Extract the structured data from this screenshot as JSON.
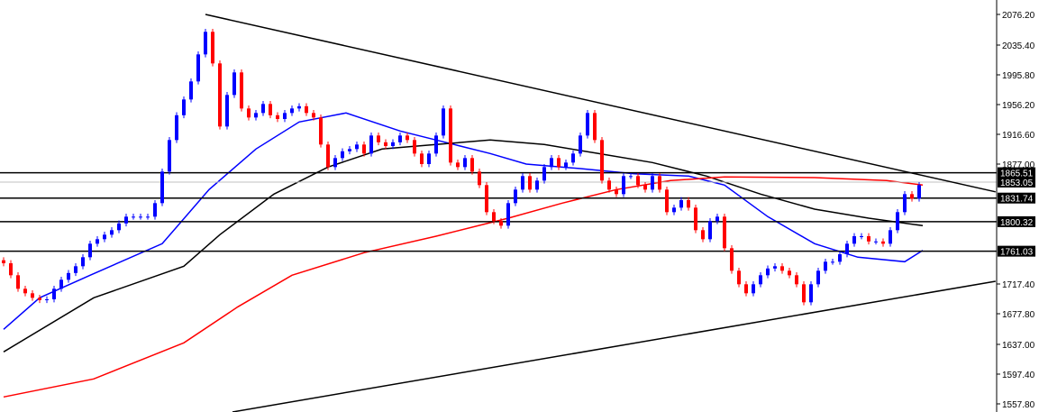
{
  "chart_data": {
    "type": "candlestick",
    "title": "",
    "xlabel": "",
    "ylabel": "",
    "ylim": [
      1547,
      2085
    ],
    "y_ticks": [
      "2076.20",
      "2035.40",
      "1995.80",
      "1956.20",
      "1916.60",
      "1877.00",
      "1717.40",
      "1677.80",
      "1637.00",
      "1597.40",
      "1557.80"
    ],
    "y_tick_values": [
      2076.2,
      2035.4,
      1995.8,
      1956.2,
      1916.6,
      1877.0,
      1717.4,
      1677.8,
      1637.0,
      1597.4,
      1557.8
    ],
    "colors": {
      "up": "#0000ff",
      "down": "#ff0000",
      "ma_fast": "#0000ff",
      "ma_mid": "#000000",
      "ma_slow": "#ff0000",
      "level": "#000000",
      "current": "#c0c0c0",
      "background": "#ffffff"
    },
    "closes": [
      1745,
      1729,
      1711,
      1705,
      1699,
      1696,
      1697,
      1711,
      1723,
      1732,
      1741,
      1753,
      1771,
      1777,
      1783,
      1789,
      1798,
      1807,
      1807,
      1807,
      1807,
      1825,
      1867,
      1909,
      1942,
      1963,
      1987,
      2023,
      2053,
      2011,
      1927,
      1969,
      1999,
      1951,
      1939,
      1945,
      1957,
      1942,
      1937,
      1945,
      1951,
      1954,
      1945,
      1939,
      1903,
      1873,
      1885,
      1894,
      1897,
      1903,
      1891,
      1915,
      1906,
      1901,
      1906,
      1915,
      1909,
      1891,
      1877,
      1891,
      1915,
      1951,
      1879,
      1873,
      1885,
      1867,
      1849,
      1813,
      1801,
      1795,
      1825,
      1843,
      1861,
      1843,
      1855,
      1873,
      1885,
      1873,
      1879,
      1891,
      1915,
      1945,
      1909,
      1855,
      1843,
      1837,
      1861,
      1861,
      1849,
      1843,
      1861,
      1843,
      1813,
      1819,
      1829,
      1819,
      1789,
      1777,
      1801,
      1807,
      1765,
      1735,
      1717,
      1705,
      1717,
      1729,
      1738,
      1741,
      1735,
      1729,
      1717,
      1693,
      1717,
      1735,
      1747,
      1747,
      1757,
      1771,
      1781,
      1781,
      1774,
      1774,
      1771,
      1789,
      1813,
      1837,
      1831,
      1849
    ],
    "moving_averages": [
      {
        "color": "#0000ff",
        "points": [
          [
            0,
            1657
          ],
          [
            5,
            1699
          ],
          [
            12,
            1729
          ],
          [
            22,
            1771
          ],
          [
            28.5,
            1843
          ],
          [
            35,
            1897
          ],
          [
            41,
            1933
          ],
          [
            47.5,
            1945
          ],
          [
            55,
            1921
          ],
          [
            62.5,
            1903
          ],
          [
            67.5,
            1891
          ],
          [
            72.5,
            1877
          ],
          [
            80,
            1871
          ],
          [
            87.5,
            1864
          ],
          [
            95,
            1861
          ],
          [
            100,
            1849
          ],
          [
            106,
            1807
          ],
          [
            112.5,
            1771
          ],
          [
            118.5,
            1753
          ],
          [
            125,
            1747
          ],
          [
            127.5,
            1762
          ]
        ]
      },
      {
        "color": "#000000",
        "points": [
          [
            0,
            1627
          ],
          [
            12.5,
            1699
          ],
          [
            25,
            1741
          ],
          [
            30,
            1783
          ],
          [
            37.5,
            1837
          ],
          [
            45,
            1873
          ],
          [
            52.5,
            1897
          ],
          [
            60,
            1903
          ],
          [
            67.5,
            1909
          ],
          [
            75,
            1903
          ],
          [
            82.5,
            1891
          ],
          [
            90,
            1879
          ],
          [
            97.5,
            1861
          ],
          [
            105,
            1837
          ],
          [
            112.5,
            1817
          ],
          [
            120,
            1805
          ],
          [
            127.5,
            1795
          ]
        ]
      },
      {
        "color": "#ff0000",
        "points": [
          [
            0,
            1567
          ],
          [
            12.5,
            1591
          ],
          [
            25,
            1639
          ],
          [
            32.5,
            1687
          ],
          [
            40,
            1729
          ],
          [
            50,
            1759
          ],
          [
            60,
            1781
          ],
          [
            70,
            1805
          ],
          [
            77.5,
            1825
          ],
          [
            85,
            1843
          ],
          [
            92.5,
            1855
          ],
          [
            100,
            1860
          ],
          [
            112.5,
            1859
          ],
          [
            122.5,
            1855
          ],
          [
            127.5,
            1849
          ]
        ]
      }
    ],
    "trendlines": [
      {
        "from": [
          28,
          2076.2
        ],
        "to": [
          137.6,
          1840
        ]
      },
      {
        "from": [
          31.75,
          1547
        ],
        "to": [
          137.6,
          1721
        ]
      }
    ],
    "levels": [
      {
        "value": 1865.51,
        "label": "1865.51"
      },
      {
        "value": 1831.74,
        "label": "1831.74"
      },
      {
        "value": 1800.32,
        "label": "1800.32"
      },
      {
        "value": 1761.03,
        "label": "1761.03"
      }
    ],
    "current_price": {
      "value": 1853.05,
      "label": "1853.05"
    }
  }
}
